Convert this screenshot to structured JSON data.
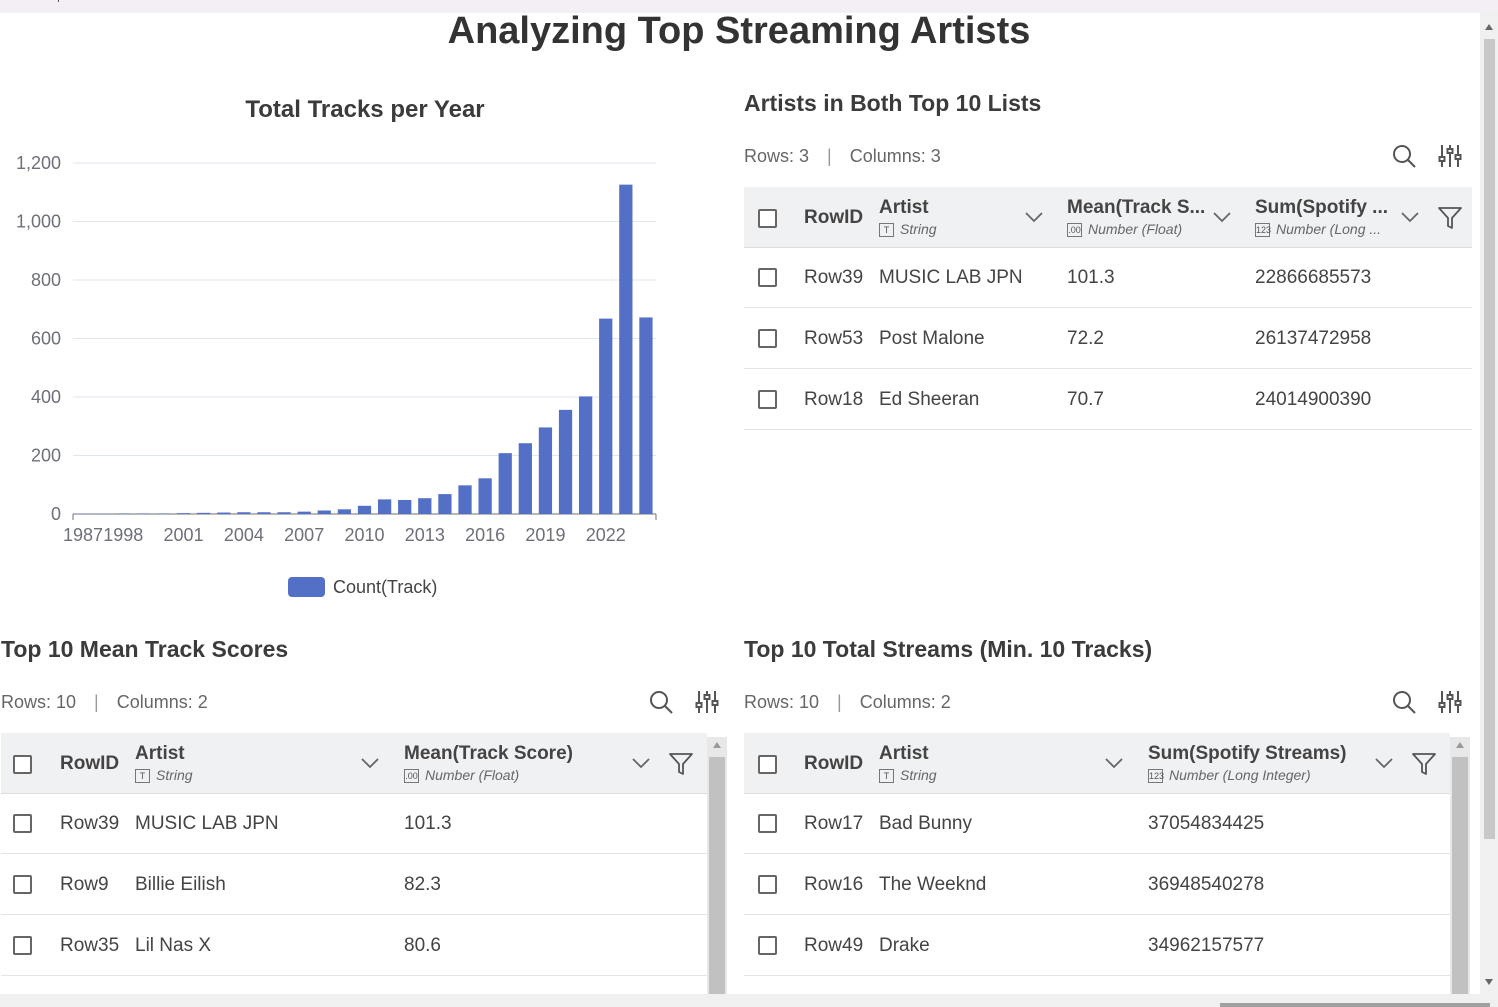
{
  "page": {
    "title": "Analyzing Top Streaming Artists"
  },
  "chart": {
    "title": "Total Tracks per Year",
    "legend": "Count(Track)",
    "color": "#5470c6"
  },
  "chart_data": {
    "type": "bar",
    "title": "Total Tracks per Year",
    "xlabel": "",
    "ylabel": "",
    "ylim": [
      0,
      1200
    ],
    "yticks": [
      0,
      200,
      400,
      600,
      800,
      1000,
      1200
    ],
    "ytick_labels": [
      "0",
      "200",
      "400",
      "600",
      "800",
      "1,000",
      "1,200"
    ],
    "xtick_labels": [
      "1987",
      "1998",
      "2001",
      "2004",
      "2007",
      "2010",
      "2013",
      "2016",
      "2019",
      "2022"
    ],
    "legend_position": "bottom",
    "grid": true,
    "categories": [
      "1987",
      "1991",
      "1998",
      "1999",
      "2000",
      "2001",
      "2002",
      "2003",
      "2004",
      "2005",
      "2006",
      "2007",
      "2008",
      "2009",
      "2010",
      "2011",
      "2012",
      "2013",
      "2014",
      "2015",
      "2016",
      "2017",
      "2018",
      "2019",
      "2020",
      "2021",
      "2022",
      "2023",
      "2024"
    ],
    "series": [
      {
        "name": "Count(Track)",
        "values": [
          1,
          1,
          2,
          2,
          2,
          3,
          4,
          5,
          6,
          6,
          6,
          8,
          12,
          16,
          28,
          50,
          48,
          54,
          68,
          98,
          122,
          208,
          242,
          296,
          356,
          402,
          668,
          1126,
          672
        ]
      }
    ]
  },
  "both_table": {
    "title": "Artists in Both Top 10 Lists",
    "rows_label": "Rows: 3",
    "cols_label": "Columns: 3",
    "columns": [
      {
        "name": "RowID",
        "type": ""
      },
      {
        "name": "Artist",
        "type": "String",
        "badge": "T"
      },
      {
        "name": "Mean(Track S...",
        "type": "Number (Float)",
        "badge": ".00"
      },
      {
        "name": "Sum(Spotify ...",
        "type": "Number (Long ...",
        "badge": "123"
      }
    ],
    "rows": [
      {
        "id": "Row39",
        "artist": "MUSIC LAB JPN",
        "score": "101.3",
        "streams": "22866685573"
      },
      {
        "id": "Row53",
        "artist": "Post Malone",
        "score": "72.2",
        "streams": "26137472958"
      },
      {
        "id": "Row18",
        "artist": "Ed Sheeran",
        "score": "70.7",
        "streams": "24014900390"
      }
    ]
  },
  "mean_table": {
    "title": "Top 10 Mean Track Scores",
    "rows_label": "Rows: 10",
    "cols_label": "Columns: 2",
    "columns": [
      {
        "name": "RowID",
        "type": ""
      },
      {
        "name": "Artist",
        "type": "String",
        "badge": "T"
      },
      {
        "name": "Mean(Track Score)",
        "type": "Number (Float)",
        "badge": ".00"
      }
    ],
    "rows": [
      {
        "id": "Row39",
        "artist": "MUSIC LAB JPN",
        "value": "101.3"
      },
      {
        "id": "Row9",
        "artist": "Billie Eilish",
        "value": "82.3"
      },
      {
        "id": "Row35",
        "artist": "Lil Nas X",
        "value": "80.6"
      }
    ]
  },
  "streams_table": {
    "title": "Top 10 Total Streams (Min. 10 Tracks)",
    "rows_label": "Rows: 10",
    "cols_label": "Columns: 2",
    "columns": [
      {
        "name": "RowID",
        "type": ""
      },
      {
        "name": "Artist",
        "type": "String",
        "badge": "T"
      },
      {
        "name": "Sum(Spotify Streams)",
        "type": "Number (Long Integer)",
        "badge": "123"
      }
    ],
    "rows": [
      {
        "id": "Row17",
        "artist": "Bad Bunny",
        "value": "37054834425"
      },
      {
        "id": "Row16",
        "artist": "The Weeknd",
        "value": "36948540278"
      },
      {
        "id": "Row49",
        "artist": "Drake",
        "value": "34962157577"
      }
    ]
  }
}
